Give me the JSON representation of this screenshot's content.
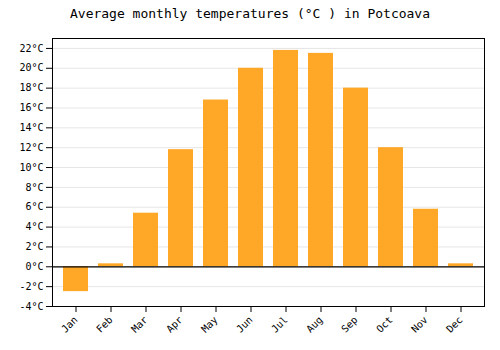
{
  "chart_data": {
    "type": "bar",
    "title": "Average monthly temperatures (°C ) in Potcoava",
    "categories": [
      "Jan",
      "Feb",
      "Mar",
      "Apr",
      "May",
      "Jun",
      "Jul",
      "Aug",
      "Sep",
      "Oct",
      "Nov",
      "Dec"
    ],
    "values": [
      -2.5,
      0.3,
      5.4,
      11.8,
      16.8,
      20.0,
      21.8,
      21.5,
      18.0,
      12.0,
      5.8,
      0.3
    ],
    "color": "#FFA726",
    "ylim": [
      -4,
      23
    ],
    "yticks": [
      {
        "value": -4,
        "label": "-4°C"
      },
      {
        "value": -2,
        "label": "-2°C"
      },
      {
        "value": 0,
        "label": "0°C"
      },
      {
        "value": 2,
        "label": "2°C"
      },
      {
        "value": 4,
        "label": "4°C"
      },
      {
        "value": 6,
        "label": "6°C"
      },
      {
        "value": 8,
        "label": "8°C"
      },
      {
        "value": 10,
        "label": "10°C"
      },
      {
        "value": 12,
        "label": "12°C"
      },
      {
        "value": 14,
        "label": "14°C"
      },
      {
        "value": 16,
        "label": "16°C"
      },
      {
        "value": 18,
        "label": "18°C"
      },
      {
        "value": 20,
        "label": "20°C"
      },
      {
        "value": 22,
        "label": "22°C"
      }
    ],
    "grid": true
  }
}
